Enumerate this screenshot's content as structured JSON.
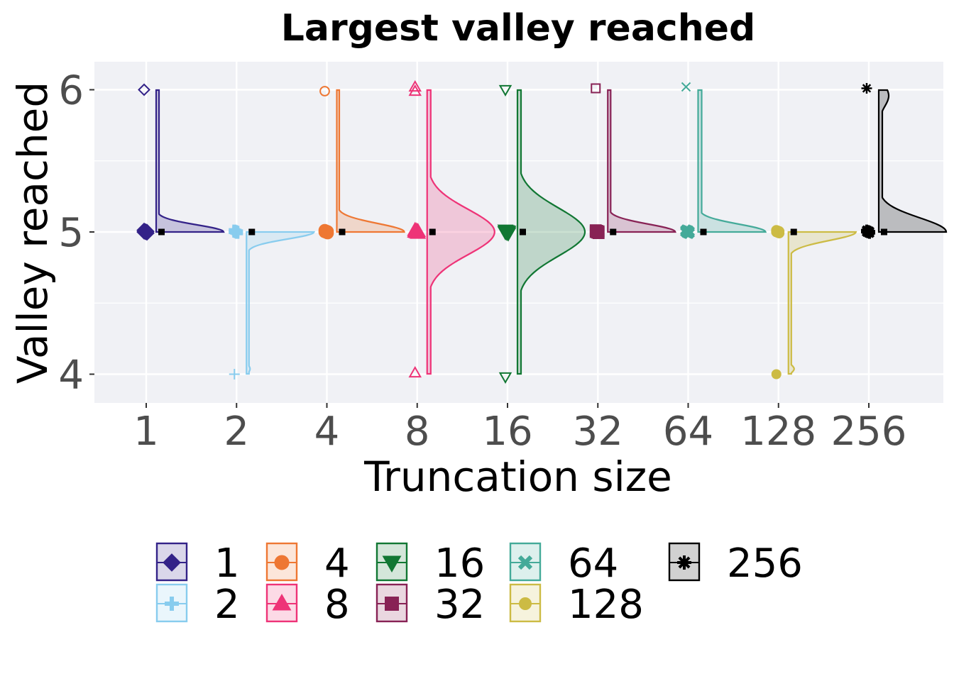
{
  "chart_data": {
    "type": "violin",
    "title": "Largest valley reached",
    "xlabel": "Truncation size",
    "ylabel": "Valley reached",
    "categories": [
      "1",
      "2",
      "4",
      "8",
      "16",
      "32",
      "64",
      "128",
      "256"
    ],
    "ylim": [
      3.8,
      6.2
    ],
    "yticks": [
      "4",
      "5",
      "6"
    ],
    "grid": true,
    "legend_position": "bottom",
    "legend_entries": [
      "1",
      "2",
      "4",
      "8",
      "16",
      "32",
      "64",
      "128",
      "256"
    ],
    "series": [
      {
        "name": "1",
        "color": "#332288",
        "marker": "diamond",
        "mean": 5.0,
        "outliers": [
          6.0
        ]
      },
      {
        "name": "2",
        "color": "#88ccee",
        "marker": "plus",
        "mean": 5.0,
        "outliers": [
          4.0
        ]
      },
      {
        "name": "4",
        "color": "#ee7733",
        "marker": "circle",
        "mean": 5.0,
        "outliers": [
          5.99
        ]
      },
      {
        "name": "8",
        "color": "#ee3377",
        "marker": "triangle-up",
        "mean": 5.0,
        "outliers": [
          6.02,
          5.99,
          4.01
        ]
      },
      {
        "name": "16",
        "color": "#117733",
        "marker": "triangle-down",
        "mean": 5.0,
        "outliers": [
          6.0,
          3.98
        ]
      },
      {
        "name": "32",
        "color": "#882255",
        "marker": "square",
        "mean": 5.0,
        "outliers": [
          6.01
        ]
      },
      {
        "name": "64",
        "color": "#44aa99",
        "marker": "x",
        "mean": 5.0,
        "outliers": [
          6.02
        ]
      },
      {
        "name": "128",
        "color": "#ccbb44",
        "marker": "circle-filled",
        "mean": 5.0,
        "outliers": [
          4.0
        ]
      },
      {
        "name": "256",
        "color": "#000000",
        "marker": "asterisk",
        "mean": 5.0,
        "outliers": [
          6.01
        ]
      }
    ]
  }
}
